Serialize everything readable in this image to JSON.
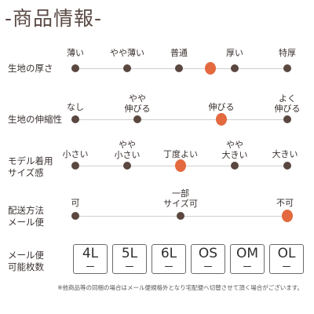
{
  "title": "-商品情報-",
  "rows": [
    {
      "label_lines": [
        "生地の厚さ"
      ],
      "options": [
        "薄い",
        "やや薄い",
        "普通",
        "",
        "厚い",
        "特厚"
      ],
      "selected_index": 3
    },
    {
      "label_lines": [
        "生地の伸縮性"
      ],
      "options": [
        "なし",
        "やや\n伸びる",
        "伸びる",
        "よく\n伸びる"
      ],
      "selected_index": 2
    },
    {
      "label_lines": [
        "モデル着用",
        "サイズ感"
      ],
      "options": [
        "小さい",
        "やや\n小さい",
        "丁度よい",
        "やや\n大きい",
        "大きい"
      ],
      "selected_index": 2
    },
    {
      "label_lines": [
        "配送方法",
        "メール便"
      ],
      "options": [
        "可",
        "一部\nサイズ可",
        "不可"
      ],
      "selected_index": 2
    }
  ],
  "mail": {
    "label_lines": [
      "メール便",
      "可能枚数"
    ],
    "sizes": [
      {
        "name": "4L",
        "value": "ー"
      },
      {
        "name": "5L",
        "value": "ー"
      },
      {
        "name": "6L",
        "value": "ー"
      },
      {
        "name": "OS",
        "value": "ー"
      },
      {
        "name": "OM",
        "value": "ー"
      },
      {
        "name": "OL",
        "value": "ー"
      }
    ]
  },
  "note": "※他商品等の同梱の場合はメール便規格外となり宅配便へ切替させて頂く場合がございます。"
}
